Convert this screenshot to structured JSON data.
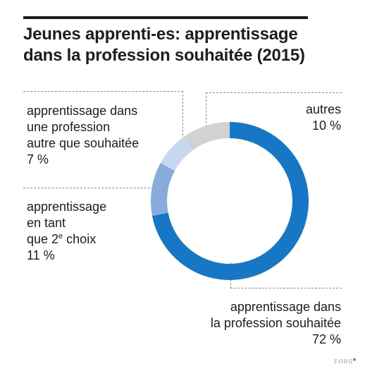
{
  "title": {
    "line1": "Jeunes apprenti-es: apprentissage",
    "line2": "dans la profession souhaitée (2015)"
  },
  "labels": {
    "autre_profession": {
      "line1": "apprentissage dans",
      "line2": "une profession",
      "line3": "autre que souhaitée",
      "value": "7 %"
    },
    "deuxieme_choix": {
      "line1": "apprentissage",
      "line2": "en tant",
      "line3_prefix": "que 2",
      "line3_sup": "e",
      "line3_suffix": " choix",
      "value": "11 %"
    },
    "autres": {
      "line1": "autres",
      "value": "10 %"
    },
    "souhaitee": {
      "line1": "apprentissage dans",
      "line2": "la profession souhaitée",
      "value": "72 %"
    }
  },
  "brand": "FORS",
  "chart_data": {
    "type": "pie",
    "donut": true,
    "title": "Jeunes apprenti-es: apprentissage dans la profession souhaitée (2015)",
    "unit": "%",
    "slices": [
      {
        "label": "apprentissage dans la profession souhaitée",
        "value": 72,
        "color": "#1577c5"
      },
      {
        "label": "apprentissage en tant que 2e choix",
        "value": 11,
        "color": "#86acdc"
      },
      {
        "label": "apprentissage dans une profession autre que souhaitée",
        "value": 7,
        "color": "#c8d8f1"
      },
      {
        "label": "autres",
        "value": 10,
        "color": "#d2d2d2"
      }
    ]
  }
}
